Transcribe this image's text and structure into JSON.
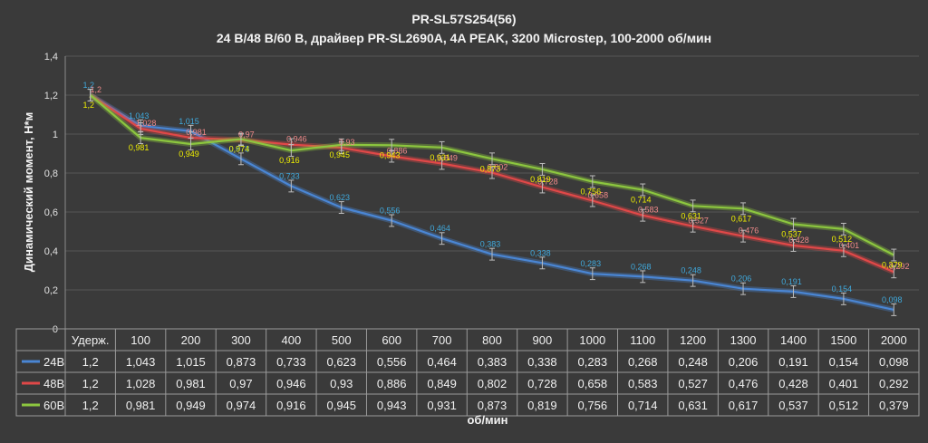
{
  "chart_data": {
    "type": "line",
    "title": "PR-SL57S254(56)",
    "subtitle": "24 В/48 В/60 В, драйвер PR-SL2690A, 4A PEAK, 3200 Microstep, 100-2000 об/мин",
    "xlabel": "об/мин",
    "ylabel": "Динамический момент, Н*м",
    "ylim": [
      0,
      1.4
    ],
    "yticks": [
      "0",
      "0,2",
      "0,4",
      "0,6",
      "0,8",
      "1",
      "1,2",
      "1,4"
    ],
    "grid": true,
    "categories": [
      "Удерж.",
      "100",
      "200",
      "300",
      "400",
      "500",
      "600",
      "700",
      "800",
      "900",
      "1000",
      "1100",
      "1200",
      "1300",
      "1400",
      "1500",
      "2000"
    ],
    "series": [
      {
        "name": "24В",
        "color": "#4a86d4",
        "label_color": "#3fa9dd",
        "values": [
          1.2,
          1.043,
          1.015,
          0.873,
          0.733,
          0.623,
          0.556,
          0.464,
          0.383,
          0.338,
          0.283,
          0.268,
          0.248,
          0.206,
          0.191,
          0.154,
          0.098
        ],
        "labels": [
          "1,2",
          "1,043",
          "1,015",
          "0,873",
          "0,733",
          "0,623",
          "0,556",
          "0,464",
          "0,383",
          "0,338",
          "0,283",
          "0,268",
          "0,248",
          "0,206",
          "0,191",
          "0,154",
          "0,098"
        ]
      },
      {
        "name": "48В",
        "color": "#e04848",
        "label_color": "#f08a8a",
        "values": [
          1.2,
          1.028,
          0.981,
          0.97,
          0.946,
          0.93,
          0.886,
          0.849,
          0.802,
          0.728,
          0.658,
          0.583,
          0.527,
          0.476,
          0.428,
          0.401,
          0.292
        ],
        "labels": [
          "1,2",
          "1,028",
          "0,981",
          "0,97",
          "0,946",
          "0,93",
          "0,886",
          "0,849",
          "0,802",
          "0,728",
          "0,658",
          "0,583",
          "0,527",
          "0,476",
          "0,428",
          "0,401",
          "0,292"
        ]
      },
      {
        "name": "60В",
        "color": "#8cc63f",
        "label_color": "#f0f000",
        "values": [
          1.2,
          0.981,
          0.949,
          0.974,
          0.916,
          0.945,
          0.943,
          0.931,
          0.873,
          0.819,
          0.756,
          0.714,
          0.631,
          0.617,
          0.537,
          0.512,
          0.379
        ],
        "labels": [
          "1,2",
          "0,981",
          "0,949",
          "0,974",
          "0,916",
          "0,945",
          "0,943",
          "0,931",
          "0,873",
          "0,819",
          "0,756",
          "0,714",
          "0,631",
          "0,617",
          "0,537",
          "0,512",
          "0,379"
        ]
      }
    ]
  }
}
